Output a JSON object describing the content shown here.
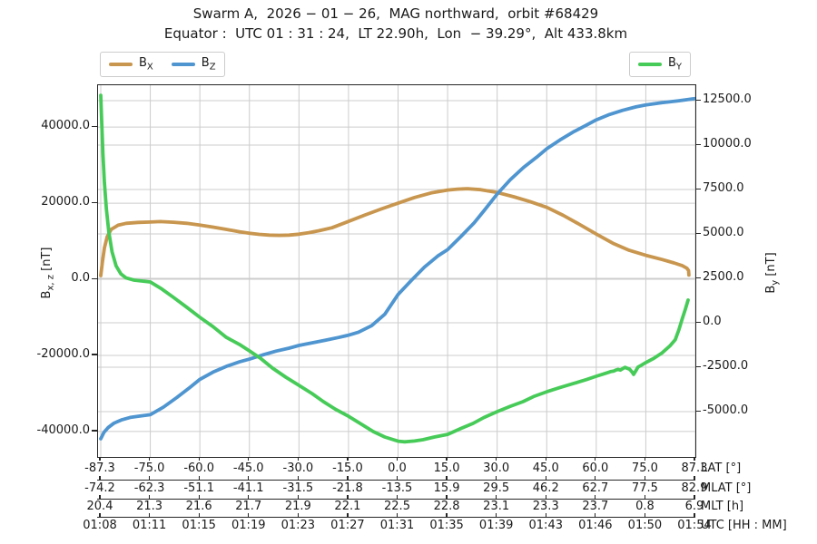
{
  "header": {
    "title": "Swarm A,  2026 − 01 − 26,  MAG northward,  orbit #68429",
    "subtitle": "Equator :  UTC 01 : 31 : 24,  LT 22.90h,  Lon  − 39.29°,  Alt 433.8km"
  },
  "legend": {
    "bx": {
      "main": "B",
      "sub": "X"
    },
    "bz": {
      "main": "B",
      "sub": "Z"
    },
    "by": {
      "main": "B",
      "sub": "Y"
    }
  },
  "axis_labels": {
    "left": {
      "main": "B",
      "sub": "x, z",
      "unit": " [nT]"
    },
    "right": {
      "main": "B",
      "sub": "y",
      "unit": " [nT]"
    }
  },
  "axes": {
    "left": {
      "tick_labels": [
        "40000.0",
        "20000.0",
        "0.0",
        "-20000.0",
        "-40000.0"
      ],
      "tick_values": [
        40000,
        20000,
        0,
        -20000,
        -40000
      ]
    },
    "right": {
      "tick_labels": [
        "12500.0",
        "10000.0",
        "7500.0",
        "5000.0",
        "2500.0",
        "0.0",
        "-2500.0",
        "-5000.0"
      ],
      "tick_values": [
        12500,
        10000,
        7500,
        5000,
        2500,
        0,
        -2500,
        -5000
      ]
    },
    "bottom_rows": [
      {
        "label": "LAT [°]",
        "values": [
          "-87.3",
          "-75.0",
          "-60.0",
          "-45.0",
          "-30.0",
          "-15.0",
          "0.0",
          "15.0",
          "30.0",
          "45.0",
          "60.0",
          "75.0",
          "87.3"
        ]
      },
      {
        "label": "MLAT [°]",
        "values": [
          "-74.2",
          "-62.3",
          "-51.1",
          "-41.1",
          "-31.5",
          "-21.8",
          "-13.5",
          "15.9",
          "29.5",
          "46.2",
          "62.7",
          "77.5",
          "82.9"
        ]
      },
      {
        "label": "MLT [h]",
        "values": [
          "20.4",
          "21.3",
          "21.6",
          "21.7",
          "21.9",
          "22.1",
          "22.5",
          "22.8",
          "23.1",
          "23.3",
          "23.7",
          "0.8",
          "6.9"
        ]
      },
      {
        "label": "UTC [HH : MM]",
        "values": [
          "01:08",
          "01:11",
          "01:15",
          "01:19",
          "01:23",
          "01:27",
          "01:31",
          "01:35",
          "01:39",
          "01:43",
          "01:46",
          "01:50",
          "01:54"
        ]
      }
    ]
  },
  "chart_data": {
    "type": "line",
    "title": "Swarm A, 2026-01-26, MAG northward, orbit #68429",
    "subtitle": "Equator: UTC 01:31:24, LT 22.90h, Lon -39.29°, Alt 433.8km",
    "x_label": "LAT [°] (with aligned MLAT [°], MLT [h], UTC [HH:MM] rows)",
    "ylabel_left": "Bx,z [nT]",
    "ylabel_right": "By [nT]",
    "grid": true,
    "legend_position": "top",
    "lat_ticks": [
      -87.3,
      -75,
      -60,
      -45,
      -30,
      -15,
      0,
      15,
      30,
      45,
      60,
      75,
      87.3
    ],
    "ylim_left": [
      -46700,
      51000
    ],
    "ylim_right": [
      -7550,
      13370
    ],
    "series": [
      {
        "name": "B_X",
        "axis": "left",
        "color": "#c8964e",
        "points": [
          [
            -87.3,
            950
          ],
          [
            -86.9,
            4500
          ],
          [
            -86.4,
            8200
          ],
          [
            -85.7,
            11200
          ],
          [
            -84.7,
            13100
          ],
          [
            -83,
            14200
          ],
          [
            -81,
            14700
          ],
          [
            -78,
            14950
          ],
          [
            -75,
            15050
          ],
          [
            -72,
            15150
          ],
          [
            -68,
            15000
          ],
          [
            -64,
            14700
          ],
          [
            -60,
            14250
          ],
          [
            -56,
            13700
          ],
          [
            -52,
            13100
          ],
          [
            -48,
            12500
          ],
          [
            -45,
            12100
          ],
          [
            -42,
            11800
          ],
          [
            -39,
            11620
          ],
          [
            -36,
            11550
          ],
          [
            -33,
            11620
          ],
          [
            -30,
            11850
          ],
          [
            -27,
            12250
          ],
          [
            -24,
            12750
          ],
          [
            -20,
            13550
          ],
          [
            -15,
            15200
          ],
          [
            -10,
            16900
          ],
          [
            -5,
            18500
          ],
          [
            0,
            20000
          ],
          [
            5,
            21500
          ],
          [
            10,
            22700
          ],
          [
            15,
            23450
          ],
          [
            18,
            23700
          ],
          [
            21,
            23800
          ],
          [
            25,
            23550
          ],
          [
            30,
            22800
          ],
          [
            35,
            21700
          ],
          [
            40,
            20400
          ],
          [
            45,
            18900
          ],
          [
            50,
            16800
          ],
          [
            55,
            14400
          ],
          [
            60,
            11900
          ],
          [
            65,
            9500
          ],
          [
            70,
            7600
          ],
          [
            75,
            6300
          ],
          [
            79,
            5200
          ],
          [
            82,
            4300
          ],
          [
            84,
            3600
          ],
          [
            85.2,
            2900
          ],
          [
            85.6,
            2300
          ],
          [
            85.7,
            1100
          ]
        ]
      },
      {
        "name": "B_Z",
        "axis": "left",
        "color": "#4f95d0",
        "points": [
          [
            -87.3,
            -41900
          ],
          [
            -86.5,
            -40200
          ],
          [
            -85.5,
            -39000
          ],
          [
            -84,
            -37800
          ],
          [
            -82,
            -36900
          ],
          [
            -80,
            -36300
          ],
          [
            -78,
            -36000
          ],
          [
            -75,
            -35600
          ],
          [
            -71,
            -33600
          ],
          [
            -67,
            -31100
          ],
          [
            -63,
            -28400
          ],
          [
            -60,
            -26300
          ],
          [
            -56,
            -24400
          ],
          [
            -52,
            -22900
          ],
          [
            -48,
            -21700
          ],
          [
            -45,
            -21000
          ],
          [
            -41,
            -19900
          ],
          [
            -37,
            -18900
          ],
          [
            -33,
            -18100
          ],
          [
            -30,
            -17400
          ],
          [
            -26,
            -16700
          ],
          [
            -22,
            -16000
          ],
          [
            -18,
            -15300
          ],
          [
            -15,
            -14700
          ],
          [
            -12,
            -13900
          ],
          [
            -8,
            -12200
          ],
          [
            -4,
            -9200
          ],
          [
            0,
            -4000
          ],
          [
            4,
            -300
          ],
          [
            8,
            3200
          ],
          [
            12,
            6100
          ],
          [
            15,
            7800
          ],
          [
            19,
            11200
          ],
          [
            23,
            14800
          ],
          [
            26,
            18000
          ],
          [
            30,
            22400
          ],
          [
            34,
            26200
          ],
          [
            38,
            29400
          ],
          [
            42,
            32100
          ],
          [
            45,
            34300
          ],
          [
            49,
            36600
          ],
          [
            53,
            38700
          ],
          [
            57,
            40500
          ],
          [
            60,
            41900
          ],
          [
            64,
            43300
          ],
          [
            68,
            44400
          ],
          [
            72,
            45300
          ],
          [
            75,
            45800
          ],
          [
            79,
            46400
          ],
          [
            83,
            46900
          ],
          [
            87.3,
            47500
          ]
        ]
      },
      {
        "name": "B_Y",
        "axis": "right",
        "color": "#47cb58",
        "points": [
          [
            -87.3,
            12800
          ],
          [
            -87.05,
            11200
          ],
          [
            -86.75,
            9500
          ],
          [
            -86.4,
            7900
          ],
          [
            -85.9,
            6400
          ],
          [
            -85.3,
            5100
          ],
          [
            -84.5,
            4000
          ],
          [
            -83.5,
            3200
          ],
          [
            -82.3,
            2750
          ],
          [
            -81,
            2520
          ],
          [
            -79,
            2400
          ],
          [
            -77,
            2350
          ],
          [
            -75,
            2300
          ],
          [
            -71.5,
            1900
          ],
          [
            -68,
            1430
          ],
          [
            -64,
            880
          ],
          [
            -60,
            310
          ],
          [
            -56,
            -220
          ],
          [
            -52,
            -820
          ],
          [
            -48,
            -1220
          ],
          [
            -45,
            -1580
          ],
          [
            -41.5,
            -2020
          ],
          [
            -38,
            -2550
          ],
          [
            -34,
            -3060
          ],
          [
            -30,
            -3520
          ],
          [
            -26,
            -3990
          ],
          [
            -22.6,
            -4440
          ],
          [
            -19,
            -4860
          ],
          [
            -15,
            -5260
          ],
          [
            -11,
            -5720
          ],
          [
            -7.5,
            -6120
          ],
          [
            -4,
            -6430
          ],
          [
            0,
            -6660
          ],
          [
            2,
            -6700
          ],
          [
            5,
            -6650
          ],
          [
            7.5,
            -6580
          ],
          [
            11,
            -6430
          ],
          [
            15,
            -6280
          ],
          [
            19,
            -5950
          ],
          [
            22.7,
            -5660
          ],
          [
            26,
            -5330
          ],
          [
            30,
            -5000
          ],
          [
            34,
            -4700
          ],
          [
            37.8,
            -4440
          ],
          [
            41,
            -4150
          ],
          [
            45,
            -3880
          ],
          [
            49,
            -3640
          ],
          [
            53,
            -3420
          ],
          [
            57,
            -3200
          ],
          [
            60,
            -3010
          ],
          [
            62,
            -2890
          ],
          [
            63.5,
            -2800
          ],
          [
            64.5,
            -2740
          ],
          [
            65.3,
            -2720
          ],
          [
            65.9,
            -2660
          ],
          [
            66.6,
            -2620
          ],
          [
            67.3,
            -2660
          ],
          [
            68,
            -2580
          ],
          [
            68.7,
            -2510
          ],
          [
            69.4,
            -2560
          ],
          [
            70.1,
            -2610
          ],
          [
            70.8,
            -2760
          ],
          [
            71.3,
            -2900
          ],
          [
            71.9,
            -2730
          ],
          [
            72.6,
            -2500
          ],
          [
            73.5,
            -2400
          ],
          [
            75,
            -2240
          ],
          [
            77,
            -2000
          ],
          [
            79,
            -1700
          ],
          [
            81,
            -1300
          ],
          [
            82.3,
            -960
          ],
          [
            83.2,
            -400
          ],
          [
            84,
            200
          ],
          [
            84.8,
            750
          ],
          [
            85.5,
            1280
          ]
        ]
      }
    ]
  },
  "colors": {
    "bx": "#c8964e",
    "bz": "#4f95d0",
    "by": "#47cb58",
    "grid": "#cccccc",
    "frame": "#262626",
    "background": "#ffffff"
  }
}
